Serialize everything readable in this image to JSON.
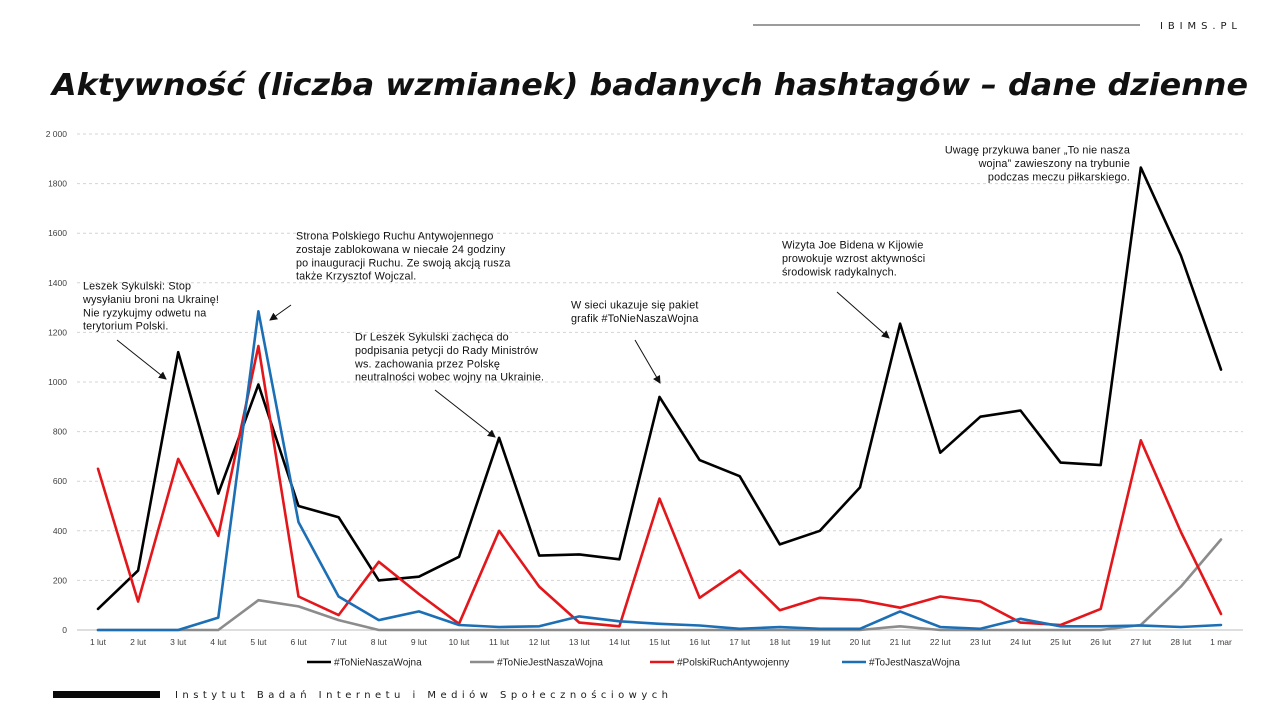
{
  "header": {
    "site": "IBIMS.PL"
  },
  "title": "Aktywność (liczba wzmianek) badanych hashtagów – dane dzienne",
  "footer": {
    "institute": "Instytut Badań Internetu i Mediów Społecznościowych"
  },
  "colors": {
    "grid": "#d4d4d4",
    "axis": "#bdbdbd",
    "arrow": "#111111"
  },
  "chart_data": {
    "type": "line",
    "title": "Aktywność (liczba wzmianek) badanych hashtagów – dane dzienne",
    "xlabel": "",
    "ylabel": "",
    "grid": true,
    "legend_position": "bottom",
    "ylim": [
      0,
      2000
    ],
    "yticks": [
      0,
      200,
      400,
      600,
      800,
      1000,
      1200,
      1400,
      1600,
      1800,
      2000
    ],
    "ytick_labels": [
      "0",
      "200",
      "400",
      "600",
      "800",
      "1000",
      "1200",
      "1400",
      "1600",
      "1800",
      "2 000"
    ],
    "categories": [
      "1 lut",
      "2 lut",
      "3 lut",
      "4 lut",
      "5 lut",
      "6 lut",
      "7 lut",
      "8 lut",
      "9 lut",
      "10 lut",
      "11 lut",
      "12 lut",
      "13 lut",
      "14 lut",
      "15 lut",
      "16 lut",
      "17 lut",
      "18 lut",
      "19 lut",
      "20 lut",
      "21 lut",
      "22 lut",
      "23 lut",
      "24 lut",
      "25 lut",
      "26 lut",
      "27 lut",
      "28 lut",
      "1 mar"
    ],
    "series": [
      {
        "name": "#ToNieNaszaWojna",
        "color": "#000000",
        "values": [
          85,
          240,
          1120,
          550,
          990,
          500,
          455,
          200,
          215,
          295,
          775,
          300,
          305,
          285,
          940,
          685,
          620,
          345,
          400,
          575,
          1235,
          715,
          860,
          885,
          675,
          665,
          1865,
          1510,
          1050
        ]
      },
      {
        "name": "#ToNieJestNaszaWojna",
        "color": "#8c8c8c",
        "values": [
          0,
          0,
          0,
          0,
          120,
          95,
          40,
          0,
          0,
          0,
          0,
          0,
          0,
          0,
          0,
          0,
          0,
          0,
          0,
          0,
          15,
          0,
          0,
          0,
          0,
          0,
          20,
          175,
          365
        ]
      },
      {
        "name": "#PolskiRuchAntywojenny",
        "color": "#e3171b",
        "values": [
          650,
          115,
          690,
          380,
          1145,
          135,
          60,
          275,
          145,
          25,
          400,
          175,
          30,
          15,
          530,
          130,
          240,
          80,
          130,
          120,
          90,
          135,
          115,
          30,
          20,
          85,
          765,
          395,
          65
        ]
      },
      {
        "name": "#ToJestNaszaWojna",
        "color": "#1c6fb5",
        "values": [
          0,
          0,
          0,
          50,
          1285,
          435,
          135,
          40,
          75,
          20,
          12,
          15,
          55,
          35,
          25,
          18,
          5,
          12,
          5,
          5,
          75,
          12,
          5,
          45,
          15,
          15,
          18,
          12,
          20
        ]
      }
    ],
    "annotations": [
      {
        "lines": [
          "Leszek Sykulski: Stop",
          "wysyłaniu broni na Ukrainę!",
          "Nie ryzykujmy odwetu na",
          "terytorium Polski."
        ]
      },
      {
        "lines": [
          "Strona Polskiego Ruchu Antywojennego",
          "zostaje zablokowana w niecałe 24 godziny",
          "po inauguracji Ruchu. Ze swoją akcją rusza",
          "także Krzysztof Wojczal."
        ]
      },
      {
        "lines": [
          "Dr Leszek Sykulski zachęca do",
          "podpisania petycji do Rady Ministrów",
          "ws. zachowania przez Polskę",
          "neutralności wobec wojny na Ukrainie."
        ]
      },
      {
        "lines": [
          "W sieci ukazuje się pakiet",
          "grafik #ToNieNaszaWojna"
        ]
      },
      {
        "lines": [
          "Wizyta Joe Bidena w Kijowie",
          "prowokuje wzrost aktywności",
          "środowisk radykalnych."
        ]
      },
      {
        "lines": [
          "Uwagę przykuwa baner „To nie nasza",
          "wojna” zawieszony na trybunie",
          "podczas meczu piłkarskiego."
        ]
      }
    ]
  }
}
